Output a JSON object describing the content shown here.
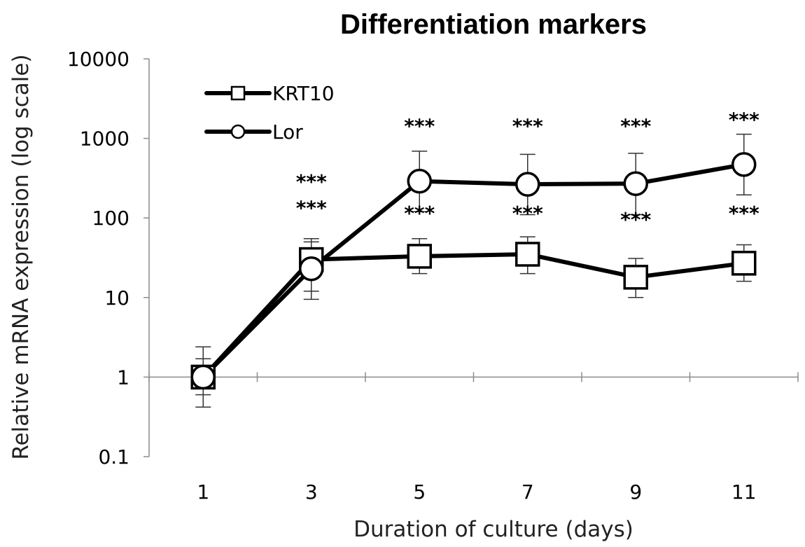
{
  "chart_data": {
    "type": "line",
    "title": "Differentiation markers",
    "xlabel": "Duration of culture (days)",
    "ylabel": "Relative  mRNA  expression  (log scale)",
    "yscale": "log",
    "ylim": [
      0.1,
      10000
    ],
    "x": [
      1,
      3,
      5,
      7,
      9,
      11
    ],
    "x_tick_labels": [
      "1",
      "3",
      "5",
      "7",
      "9",
      "11"
    ],
    "y_tick_labels": [
      "0.1",
      "1",
      "10",
      "100",
      "1000",
      "10000"
    ],
    "legend_position": "top-left",
    "grid": false,
    "series": [
      {
        "name": "KRT10",
        "marker": "square",
        "color": "#000000",
        "values": [
          1,
          30,
          33,
          35,
          18,
          27
        ],
        "error_low": [
          0.6,
          12,
          20,
          20,
          10,
          16
        ],
        "error_high": [
          1.7,
          50,
          55,
          58,
          31,
          46
        ]
      },
      {
        "name": "Lor",
        "marker": "circle",
        "color": "#000000",
        "values": [
          1,
          23,
          290,
          265,
          270,
          470
        ],
        "error_low": [
          0.42,
          9.5,
          120,
          110,
          110,
          195
        ],
        "error_high": [
          2.4,
          55,
          690,
          630,
          650,
          1130
        ]
      }
    ],
    "annotations": [
      {
        "text": "***",
        "x": 3,
        "y": 300
      },
      {
        "text": "***",
        "x": 3,
        "y": 140
      },
      {
        "text": "***",
        "x": 5,
        "y": 1500
      },
      {
        "text": "***",
        "x": 5,
        "y": 120
      },
      {
        "text": "***",
        "x": 7,
        "y": 1500
      },
      {
        "text": "***",
        "x": 7,
        "y": 120
      },
      {
        "text": "***",
        "x": 9,
        "y": 1500
      },
      {
        "text": "***",
        "x": 9,
        "y": 100
      },
      {
        "text": "***",
        "x": 11,
        "y": 1800
      },
      {
        "text": "***",
        "x": 11,
        "y": 120
      }
    ]
  }
}
